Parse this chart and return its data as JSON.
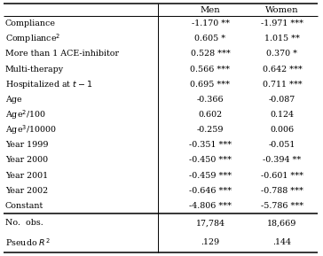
{
  "col_headers": [
    "Men",
    "Women"
  ],
  "rows": [
    [
      "Compliance",
      "-1.170 **",
      "-1.971 ***"
    ],
    [
      "Compliance$^2$",
      "0.605 *",
      "1.015 **"
    ],
    [
      "More than 1 ACE-inhibitor",
      "0.528 ***",
      "0.370 *"
    ],
    [
      "Multi-therapy",
      "0.566 ***",
      "0.642 ***"
    ],
    [
      "Hospitalized at $t-1$",
      "0.695 ***",
      "0.711 ***"
    ],
    [
      "Age",
      "-0.366",
      "-0.087"
    ],
    [
      "Age$^2$/100",
      "0.602",
      "0.124"
    ],
    [
      "Age$^3$/10000",
      "-0.259",
      "0.006"
    ],
    [
      "Year 1999",
      "-0.351 ***",
      "-0.051"
    ],
    [
      "Year 2000",
      "-0.450 ***",
      "-0.394 **"
    ],
    [
      "Year 2001",
      "-0.459 ***",
      "-0.601 ***"
    ],
    [
      "Year 2002",
      "-0.646 ***",
      "-0.788 ***"
    ],
    [
      "Constant",
      "-4.806 ***",
      "-5.786 ***"
    ]
  ],
  "footer_rows": [
    [
      "No.  obs.",
      "17,784",
      "18,669"
    ],
    [
      "Pseudo $R^2$",
      ".129",
      ".144"
    ]
  ],
  "bg_color": "white",
  "text_color": "black",
  "font_size": 6.8,
  "header_font_size": 7.2
}
